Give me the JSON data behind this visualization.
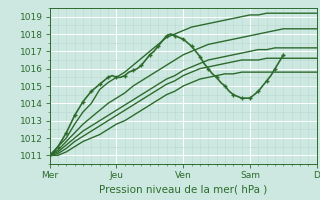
{
  "title": "",
  "xlabel": "Pression niveau de la mer( hPa )",
  "ylim": [
    1010.5,
    1019.5
  ],
  "yticks": [
    1011,
    1012,
    1013,
    1014,
    1015,
    1016,
    1017,
    1018,
    1019
  ],
  "day_labels": [
    "Mer",
    "Jeu",
    "Ven",
    "Sam",
    "D"
  ],
  "day_positions": [
    0,
    48,
    96,
    144,
    192
  ],
  "bg_color": "#cce8e0",
  "grid_color_major": "#ffffff",
  "grid_color_minor": "#b8d8d0",
  "line_color": "#2d6b2d",
  "total_hours": 192,
  "lines": [
    {
      "x": [
        0,
        6,
        12,
        18,
        24,
        30,
        36,
        42,
        48,
        54,
        60,
        66,
        72,
        78,
        84,
        90,
        96,
        102,
        108,
        114,
        120,
        126,
        132,
        138,
        144,
        150,
        156,
        162,
        168,
        174,
        180,
        186,
        192
      ],
      "y": [
        1011.0,
        1011.5,
        1012.0,
        1012.8,
        1013.5,
        1014.0,
        1014.8,
        1015.2,
        1015.5,
        1015.8,
        1016.2,
        1016.6,
        1017.0,
        1017.4,
        1017.8,
        1018.0,
        1018.2,
        1018.4,
        1018.5,
        1018.6,
        1018.7,
        1018.8,
        1018.9,
        1019.0,
        1019.1,
        1019.1,
        1019.2,
        1019.2,
        1019.2,
        1019.2,
        1019.2,
        1019.2,
        1019.2
      ],
      "style": "solid",
      "lw": 1.0
    },
    {
      "x": [
        0,
        6,
        12,
        18,
        24,
        30,
        36,
        42,
        48,
        54,
        60,
        66,
        72,
        78,
        84,
        90,
        96,
        102,
        108,
        114,
        120,
        126,
        132,
        138,
        144,
        150,
        156,
        162,
        168,
        174,
        180,
        186,
        192
      ],
      "y": [
        1011.0,
        1011.3,
        1011.8,
        1012.3,
        1012.8,
        1013.2,
        1013.6,
        1014.0,
        1014.3,
        1014.6,
        1015.0,
        1015.3,
        1015.6,
        1015.9,
        1016.2,
        1016.5,
        1016.8,
        1017.0,
        1017.2,
        1017.4,
        1017.5,
        1017.6,
        1017.7,
        1017.8,
        1017.9,
        1018.0,
        1018.1,
        1018.2,
        1018.3,
        1018.3,
        1018.3,
        1018.3,
        1018.3
      ],
      "style": "solid",
      "lw": 1.0
    },
    {
      "x": [
        0,
        6,
        12,
        18,
        24,
        30,
        36,
        42,
        48,
        54,
        60,
        66,
        72,
        78,
        84,
        90,
        96,
        102,
        108,
        114,
        120,
        126,
        132,
        138,
        144,
        150,
        156,
        162,
        168,
        174,
        180,
        186,
        192
      ],
      "y": [
        1011.0,
        1011.2,
        1011.6,
        1012.0,
        1012.4,
        1012.7,
        1013.0,
        1013.3,
        1013.6,
        1013.9,
        1014.2,
        1014.5,
        1014.8,
        1015.1,
        1015.4,
        1015.6,
        1015.9,
        1016.1,
        1016.3,
        1016.5,
        1016.6,
        1016.7,
        1016.8,
        1016.9,
        1017.0,
        1017.1,
        1017.1,
        1017.2,
        1017.2,
        1017.2,
        1017.2,
        1017.2,
        1017.2
      ],
      "style": "solid",
      "lw": 1.0
    },
    {
      "x": [
        0,
        6,
        12,
        18,
        24,
        30,
        36,
        42,
        48,
        54,
        60,
        66,
        72,
        78,
        84,
        90,
        96,
        102,
        108,
        114,
        120,
        126,
        132,
        138,
        144,
        150,
        156,
        162,
        168,
        174,
        180,
        186,
        192
      ],
      "y": [
        1011.0,
        1011.1,
        1011.4,
        1011.8,
        1012.1,
        1012.4,
        1012.7,
        1013.0,
        1013.3,
        1013.6,
        1013.9,
        1014.2,
        1014.5,
        1014.8,
        1015.1,
        1015.3,
        1015.6,
        1015.8,
        1016.0,
        1016.1,
        1016.2,
        1016.3,
        1016.4,
        1016.5,
        1016.5,
        1016.5,
        1016.6,
        1016.6,
        1016.6,
        1016.6,
        1016.6,
        1016.6,
        1016.6
      ],
      "style": "solid",
      "lw": 1.0
    },
    {
      "x": [
        0,
        6,
        12,
        18,
        24,
        30,
        36,
        42,
        48,
        54,
        60,
        66,
        72,
        78,
        84,
        90,
        96,
        102,
        108,
        114,
        120,
        126,
        132,
        138,
        144,
        150,
        156,
        162,
        168,
        174,
        180,
        186,
        192
      ],
      "y": [
        1011.0,
        1011.0,
        1011.2,
        1011.5,
        1011.8,
        1012.0,
        1012.2,
        1012.5,
        1012.8,
        1013.0,
        1013.3,
        1013.6,
        1013.9,
        1014.2,
        1014.5,
        1014.7,
        1015.0,
        1015.2,
        1015.4,
        1015.5,
        1015.6,
        1015.7,
        1015.7,
        1015.8,
        1015.8,
        1015.8,
        1015.8,
        1015.8,
        1015.8,
        1015.8,
        1015.8,
        1015.8,
        1015.8
      ],
      "style": "solid",
      "lw": 1.0
    },
    {
      "x": [
        0,
        3,
        6,
        9,
        12,
        15,
        18,
        21,
        24,
        27,
        30,
        33,
        36,
        39,
        42,
        45,
        48,
        51,
        54,
        57,
        60,
        63,
        66,
        69,
        72,
        75,
        78,
        81,
        84,
        87,
        90,
        93,
        96,
        99,
        102,
        105,
        108,
        111,
        114,
        117,
        120,
        123,
        126,
        129,
        132,
        135,
        138,
        141,
        144,
        147,
        150,
        153,
        156,
        159,
        162,
        165,
        168
      ],
      "y": [
        1011.0,
        1011.2,
        1011.5,
        1011.9,
        1012.3,
        1012.8,
        1013.3,
        1013.7,
        1014.1,
        1014.4,
        1014.7,
        1014.9,
        1015.1,
        1015.3,
        1015.5,
        1015.6,
        1015.5,
        1015.5,
        1015.6,
        1015.8,
        1015.9,
        1016.0,
        1016.2,
        1016.5,
        1016.8,
        1017.0,
        1017.3,
        1017.6,
        1017.9,
        1018.0,
        1017.9,
        1017.8,
        1017.7,
        1017.5,
        1017.3,
        1017.0,
        1016.7,
        1016.3,
        1016.0,
        1015.7,
        1015.5,
        1015.2,
        1015.0,
        1014.7,
        1014.5,
        1014.4,
        1014.3,
        1014.3,
        1014.3,
        1014.5,
        1014.7,
        1015.0,
        1015.3,
        1015.6,
        1016.0,
        1016.4,
        1016.8
      ],
      "style": "dotted",
      "lw": 1.2
    }
  ]
}
